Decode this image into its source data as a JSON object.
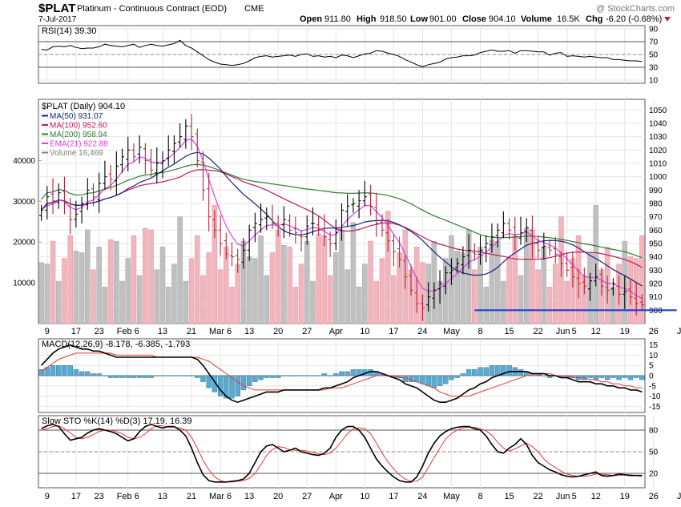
{
  "header": {
    "symbol": "$PLAT",
    "name": "Platinum - Continuous Contract (EOD)",
    "exchange": "CME",
    "date": "7-Jul-2017",
    "watermark": "@ StockCharts.com",
    "open_label": "Open",
    "open": "911.80",
    "high_label": "High",
    "high": "918.50",
    "low_label": "Low",
    "low": "901.00",
    "close_label": "Close",
    "close": "904.10",
    "volume_label": "Volume",
    "volume": "16.5K",
    "chg_label": "Chg",
    "chg": "-6.20 (-0.68%)"
  },
  "colors": {
    "up": "#000000",
    "down": "#b0283c",
    "ma50": "#1a237e",
    "ma100": "#c2185b",
    "ma200": "#2e7d32",
    "ema21": "#e040e0",
    "vol_up": "#c0c0c0",
    "vol_down": "#f1b5bd",
    "macd_line": "#000000",
    "signal_line": "#e53935",
    "hist": "#5aaad0",
    "sto_k": "#000000",
    "sto_d": "#e53935",
    "support": "#1f3fd0"
  },
  "chart_data": [
    {
      "panel": "rsi",
      "type": "line",
      "legend": "RSI(14) 39.30",
      "y_ticks": [
        10,
        30,
        50,
        70,
        90
      ],
      "ylim": [
        5,
        95
      ],
      "values": [
        58,
        57,
        62,
        63,
        62,
        64,
        61,
        59,
        60,
        60,
        62,
        66,
        64,
        63,
        62,
        64,
        66,
        61,
        64,
        66,
        64,
        63,
        65,
        67,
        72,
        64,
        60,
        54,
        48,
        42,
        38,
        35,
        34,
        33,
        34,
        36,
        40,
        45,
        47,
        48,
        46,
        47,
        48,
        49,
        47,
        50,
        51,
        47,
        48,
        46,
        47,
        45,
        49,
        48,
        45,
        48,
        51,
        52,
        56,
        55,
        52,
        50,
        47,
        42,
        38,
        34,
        31,
        34,
        36,
        38,
        43,
        45,
        46,
        48,
        48,
        49,
        53,
        55,
        57,
        55,
        55,
        56,
        52,
        56,
        56,
        55,
        54,
        54,
        49,
        52,
        53,
        47,
        48,
        47,
        46,
        47,
        46,
        45,
        45,
        42,
        42,
        41,
        40,
        40,
        39
      ]
    },
    {
      "panel": "price",
      "type": "candlestick",
      "legend_title": "$PLAT (Daily) 904.10",
      "legend": [
        {
          "name": "MA(50) 931.07",
          "color": "#1a237e"
        },
        {
          "name": "MA(100) 952.60",
          "color": "#c2185b"
        },
        {
          "name": "MA(200) 958.94",
          "color": "#2e7d32"
        },
        {
          "name": "EMA(21) 922.88",
          "color": "#e040e0"
        },
        {
          "name": "Volume 16,469",
          "color": "#808080"
        }
      ],
      "y_ticks": [
        900,
        910,
        920,
        930,
        940,
        950,
        960,
        970,
        980,
        990,
        1000,
        1010,
        1020,
        1030,
        1040,
        1050
      ],
      "ylim": [
        890,
        1058
      ],
      "volume_ticks": [
        10000,
        20000,
        30000,
        40000
      ],
      "volume_ylim": [
        0,
        55000
      ],
      "x_labels": [
        {
          "i": 1,
          "t": "9"
        },
        {
          "i": 6,
          "t": "17"
        },
        {
          "i": 10,
          "t": "23"
        },
        {
          "i": 15,
          "t": "Feb 6"
        },
        {
          "i": 21,
          "t": "13"
        },
        {
          "i": 26,
          "t": "21"
        },
        {
          "i": 31,
          "t": "Mar 6"
        },
        {
          "i": 36,
          "t": "13"
        },
        {
          "i": 41,
          "t": "20"
        },
        {
          "i": 46,
          "t": "27"
        },
        {
          "i": 51,
          "t": "Apr"
        },
        {
          "i": 56,
          "t": "10"
        },
        {
          "i": 61,
          "t": "17"
        },
        {
          "i": 66,
          "t": "24"
        },
        {
          "i": 71,
          "t": "May"
        },
        {
          "i": 76,
          "t": "8"
        },
        {
          "i": 81,
          "t": "15"
        },
        {
          "i": 86,
          "t": "22"
        },
        {
          "i": 91,
          "t": "Jun"
        },
        {
          "i": 91,
          "t": "5"
        },
        {
          "i": 96,
          "t": "12"
        },
        {
          "i": 101,
          "t": "19"
        },
        {
          "i": 106,
          "t": "26"
        },
        {
          "i": 111,
          "t": "Jul"
        }
      ],
      "close": [
        975,
        985,
        982,
        988,
        980,
        968,
        972,
        980,
        990,
        985,
        995,
        1000,
        998,
        1008,
        1015,
        1020,
        1015,
        1022,
        1012,
        1005,
        1010,
        1012,
        1020,
        1025,
        1030,
        1038,
        1030,
        1012,
        990,
        970,
        960,
        950,
        942,
        940,
        938,
        945,
        960,
        965,
        968,
        970,
        965,
        962,
        968,
        960,
        958,
        955,
        963,
        965,
        960,
        955,
        950,
        958,
        975,
        978,
        980,
        982,
        985,
        978,
        965,
        960,
        952,
        944,
        938,
        925,
        915,
        905,
        902,
        910,
        915,
        920,
        928,
        930,
        935,
        940,
        945,
        942,
        945,
        950,
        955,
        960,
        965,
        960,
        955,
        958,
        962,
        950,
        945,
        948,
        945,
        942,
        935,
        930,
        925,
        920,
        918,
        922,
        925,
        918,
        915,
        920,
        912,
        914,
        910,
        905,
        904
      ]
    },
    {
      "panel": "macd",
      "type": "line",
      "legend": "MACD(12,26,9) -8.178, -6.385, -1.793",
      "y_ticks": [
        -15,
        -10,
        -5,
        0,
        5,
        10,
        15
      ],
      "ylim": [
        -18,
        18
      ],
      "macd": [
        5,
        8,
        11,
        13,
        14,
        15,
        14,
        13,
        13,
        12,
        12,
        11,
        10,
        9,
        9,
        9,
        9,
        9,
        9,
        9,
        9,
        9,
        9,
        9,
        9,
        9,
        9,
        8,
        5,
        1,
        -3,
        -7,
        -10,
        -12,
        -13,
        -12,
        -11,
        -10,
        -9,
        -8,
        -8,
        -8,
        -7,
        -7,
        -7,
        -7,
        -7,
        -7,
        -7,
        -6,
        -6,
        -5,
        -4,
        -3,
        -1,
        0,
        1,
        2,
        2,
        1,
        0,
        -1,
        -2,
        -4,
        -5,
        -6,
        -8,
        -10,
        -12,
        -13,
        -13,
        -12,
        -11,
        -9,
        -7,
        -6,
        -4,
        -3,
        -1,
        0,
        1,
        2,
        2,
        2,
        2,
        1,
        1,
        1,
        0,
        0,
        -1,
        -1,
        -2,
        -3,
        -3,
        -3,
        -4,
        -4,
        -5,
        -5,
        -6,
        -6,
        -7,
        -7,
        -8
      ],
      "signal": [
        2,
        4,
        6,
        8,
        9,
        10,
        11,
        11,
        11,
        11,
        11,
        11,
        11,
        10,
        10,
        10,
        10,
        10,
        10,
        10,
        9,
        9,
        9,
        9,
        9,
        9,
        9,
        9,
        8,
        7,
        5,
        3,
        1,
        -1,
        -3,
        -5,
        -6,
        -7,
        -7,
        -7,
        -7,
        -7,
        -7,
        -7,
        -7,
        -7,
        -7,
        -7,
        -7,
        -7,
        -6,
        -6,
        -6,
        -5,
        -4,
        -3,
        -2,
        -1,
        0,
        0,
        0,
        0,
        -1,
        -1,
        -2,
        -3,
        -4,
        -5,
        -6,
        -8,
        -9,
        -10,
        -10,
        -10,
        -10,
        -9,
        -8,
        -7,
        -6,
        -5,
        -4,
        -3,
        -2,
        -1,
        0,
        0,
        0,
        1,
        1,
        0,
        0,
        0,
        -1,
        -1,
        -1,
        -2,
        -2,
        -3,
        -3,
        -4,
        -4,
        -5,
        -5,
        -6,
        -6
      ],
      "histogram_note": "derived as macd - signal"
    },
    {
      "panel": "stochastic",
      "type": "line",
      "legend": "Slow STO %K(14) %D(3) 17.19, 16.39",
      "y_ticks": [
        20,
        50,
        80
      ],
      "ylim": [
        0,
        100
      ],
      "k": [
        82,
        86,
        88,
        85,
        75,
        66,
        68,
        70,
        76,
        80,
        82,
        80,
        78,
        75,
        70,
        65,
        68,
        78,
        85,
        88,
        85,
        83,
        85,
        85,
        80,
        72,
        55,
        35,
        18,
        10,
        8,
        8,
        8,
        9,
        10,
        12,
        20,
        35,
        50,
        58,
        60,
        55,
        50,
        52,
        55,
        50,
        48,
        46,
        45,
        48,
        55,
        70,
        80,
        85,
        85,
        80,
        70,
        55,
        40,
        30,
        22,
        15,
        10,
        8,
        8,
        15,
        30,
        48,
        62,
        72,
        78,
        82,
        84,
        85,
        85,
        82,
        80,
        72,
        60,
        50,
        48,
        55,
        60,
        68,
        60,
        45,
        35,
        30,
        25,
        22,
        18,
        16,
        15,
        16,
        18,
        20,
        22,
        17,
        16,
        17,
        19,
        18,
        17,
        17,
        17
      ],
      "d": [
        80,
        82,
        85,
        86,
        82,
        76,
        70,
        68,
        70,
        74,
        78,
        80,
        80,
        78,
        75,
        70,
        68,
        70,
        75,
        82,
        86,
        86,
        84,
        84,
        83,
        80,
        70,
        55,
        38,
        25,
        15,
        10,
        8,
        8,
        9,
        10,
        13,
        20,
        32,
        45,
        53,
        57,
        56,
        53,
        52,
        52,
        51,
        49,
        47,
        46,
        48,
        55,
        65,
        75,
        82,
        83,
        82,
        75,
        62,
        48,
        36,
        26,
        18,
        12,
        9,
        9,
        15,
        28,
        42,
        55,
        68,
        75,
        80,
        83,
        84,
        84,
        82,
        79,
        73,
        63,
        55,
        51,
        54,
        58,
        62,
        57,
        50,
        40,
        33,
        28,
        23,
        19,
        17,
        16,
        16,
        17,
        19,
        19,
        18,
        17,
        17,
        18,
        18,
        17,
        16
      ]
    }
  ]
}
